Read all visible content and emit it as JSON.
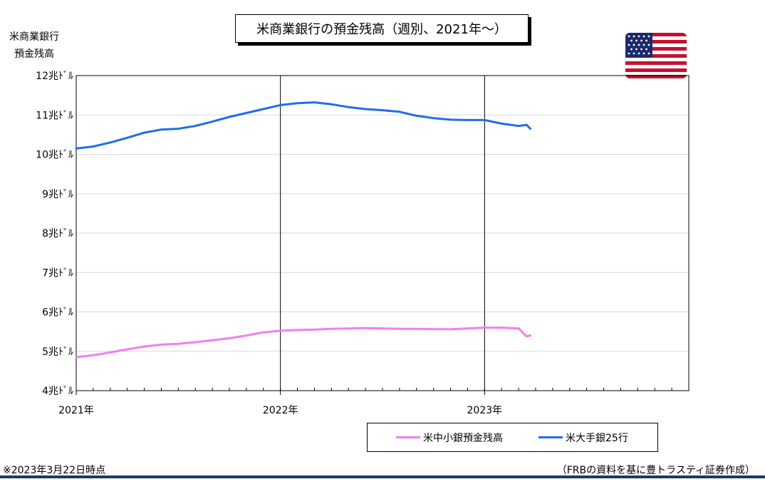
{
  "chart_data": {
    "type": "line",
    "title": "米商業銀行の預金残高（週別、2021年～）",
    "ylabel_line1": "米商業銀行",
    "ylabel_line2": "預金残高",
    "ylim": [
      4,
      12
    ],
    "y_ticks": [
      {
        "value": 12,
        "label": "12兆ﾄﾞﾙ"
      },
      {
        "value": 11,
        "label": "11兆ﾄﾞﾙ"
      },
      {
        "value": 10,
        "label": "10兆ﾄﾞﾙ"
      },
      {
        "value": 9,
        "label": "9兆ﾄﾞﾙ"
      },
      {
        "value": 8,
        "label": "8兆ﾄﾞﾙ"
      },
      {
        "value": 7,
        "label": "7兆ﾄﾞﾙ"
      },
      {
        "value": 6,
        "label": "6兆ﾄﾞﾙ"
      },
      {
        "value": 5,
        "label": "5兆ﾄﾞﾙ"
      },
      {
        "value": 4,
        "label": "4兆ﾄﾞﾙ"
      }
    ],
    "x_range": [
      "2021-01",
      "2024-01"
    ],
    "x_ticks": [
      "2021年",
      "2022年",
      "2023年"
    ],
    "grid": true,
    "legend_position": "bottom-center",
    "series": [
      {
        "name": "米中小銀預金残高",
        "color": "#f37ef0",
        "points": [
          [
            "2021-01",
            4.85
          ],
          [
            "2021-02",
            4.9
          ],
          [
            "2021-03",
            4.97
          ],
          [
            "2021-04",
            5.05
          ],
          [
            "2021-05",
            5.12
          ],
          [
            "2021-06",
            5.17
          ],
          [
            "2021-07",
            5.19
          ],
          [
            "2021-08",
            5.23
          ],
          [
            "2021-09",
            5.28
          ],
          [
            "2021-10",
            5.33
          ],
          [
            "2021-11",
            5.4
          ],
          [
            "2021-12",
            5.48
          ],
          [
            "2022-01",
            5.52
          ],
          [
            "2022-02",
            5.54
          ],
          [
            "2022-03",
            5.55
          ],
          [
            "2022-04",
            5.57
          ],
          [
            "2022-05",
            5.58
          ],
          [
            "2022-06",
            5.59
          ],
          [
            "2022-07",
            5.58
          ],
          [
            "2022-08",
            5.57
          ],
          [
            "2022-09",
            5.57
          ],
          [
            "2022-10",
            5.56
          ],
          [
            "2022-11",
            5.56
          ],
          [
            "2022-12",
            5.58
          ],
          [
            "2023-01",
            5.6
          ],
          [
            "2023-02",
            5.6
          ],
          [
            "2023-03",
            5.58
          ],
          [
            "2023-03-15",
            5.38
          ],
          [
            "2023-03-22",
            5.4
          ]
        ]
      },
      {
        "name": "米大手銀25行",
        "color": "#1f6fe6",
        "points": [
          [
            "2021-01",
            10.15
          ],
          [
            "2021-02",
            10.2
          ],
          [
            "2021-03",
            10.3
          ],
          [
            "2021-04",
            10.42
          ],
          [
            "2021-05",
            10.55
          ],
          [
            "2021-06",
            10.63
          ],
          [
            "2021-07",
            10.65
          ],
          [
            "2021-08",
            10.72
          ],
          [
            "2021-09",
            10.83
          ],
          [
            "2021-10",
            10.95
          ],
          [
            "2021-11",
            11.05
          ],
          [
            "2021-12",
            11.15
          ],
          [
            "2022-01",
            11.25
          ],
          [
            "2022-02",
            11.3
          ],
          [
            "2022-03",
            11.32
          ],
          [
            "2022-04",
            11.27
          ],
          [
            "2022-05",
            11.2
          ],
          [
            "2022-06",
            11.15
          ],
          [
            "2022-07",
            11.12
          ],
          [
            "2022-08",
            11.08
          ],
          [
            "2022-09",
            10.98
          ],
          [
            "2022-10",
            10.92
          ],
          [
            "2022-11",
            10.88
          ],
          [
            "2022-12",
            10.87
          ],
          [
            "2023-01",
            10.87
          ],
          [
            "2023-02",
            10.78
          ],
          [
            "2023-03",
            10.72
          ],
          [
            "2023-03-15",
            10.75
          ],
          [
            "2023-03-22",
            10.65
          ]
        ]
      }
    ]
  },
  "footnote": "※2023年3月22日時点",
  "source": "（FRBの資料を基に豊トラスティ証券作成）",
  "flag_icon": "us-flag-icon"
}
